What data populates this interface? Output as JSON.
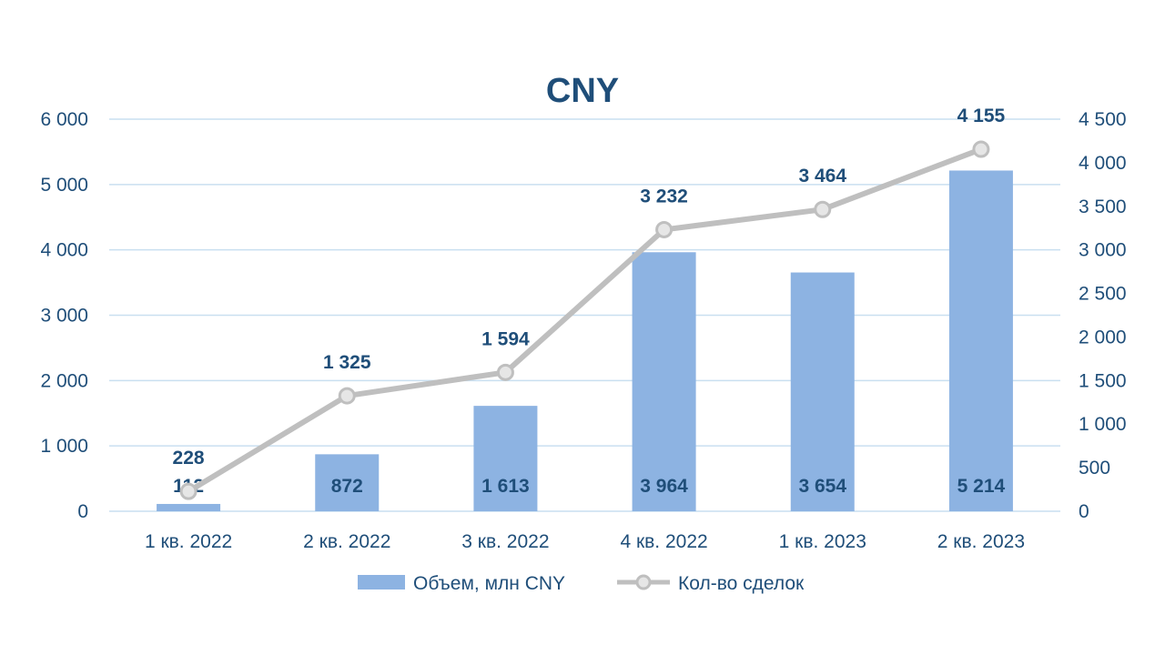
{
  "chart_data": {
    "type": "bar",
    "title": "CNY",
    "categories": [
      "1 кв. 2022",
      "2 кв. 2022",
      "3 кв. 2022",
      "4 кв. 2022",
      "1 кв. 2023",
      "2 кв. 2023"
    ],
    "series": [
      {
        "name": "Объем, млн CNY",
        "type": "bar",
        "axis": "left",
        "values": [
          112,
          872,
          1613,
          3964,
          3654,
          5214
        ],
        "labels": [
          "112",
          "872",
          "1 613",
          "3 964",
          "3 654",
          "5 214"
        ]
      },
      {
        "name": "Кол-во сделок",
        "type": "line",
        "axis": "right",
        "values": [
          228,
          1325,
          1594,
          3232,
          3464,
          4155
        ],
        "labels": [
          "228",
          "1 325",
          "1 594",
          "3 232",
          "3 464",
          "4 155"
        ]
      }
    ],
    "ylim_left": [
      0,
      6000
    ],
    "ylim_right": [
      0,
      4500
    ],
    "left_ticks": [
      "0",
      "1 000",
      "2 000",
      "3 000",
      "4 000",
      "5 000",
      "6 000"
    ],
    "right_ticks": [
      "0",
      "500",
      "1 000",
      "1 500",
      "2 000",
      "2 500",
      "3 000",
      "3 500",
      "4 000",
      "4 500"
    ],
    "grid": true,
    "legend_position": "bottom-center",
    "colors": {
      "bar": "#8db3e2",
      "line": "#bfbfbf",
      "text": "#1f4e79",
      "grid": "#c9dff0"
    }
  }
}
